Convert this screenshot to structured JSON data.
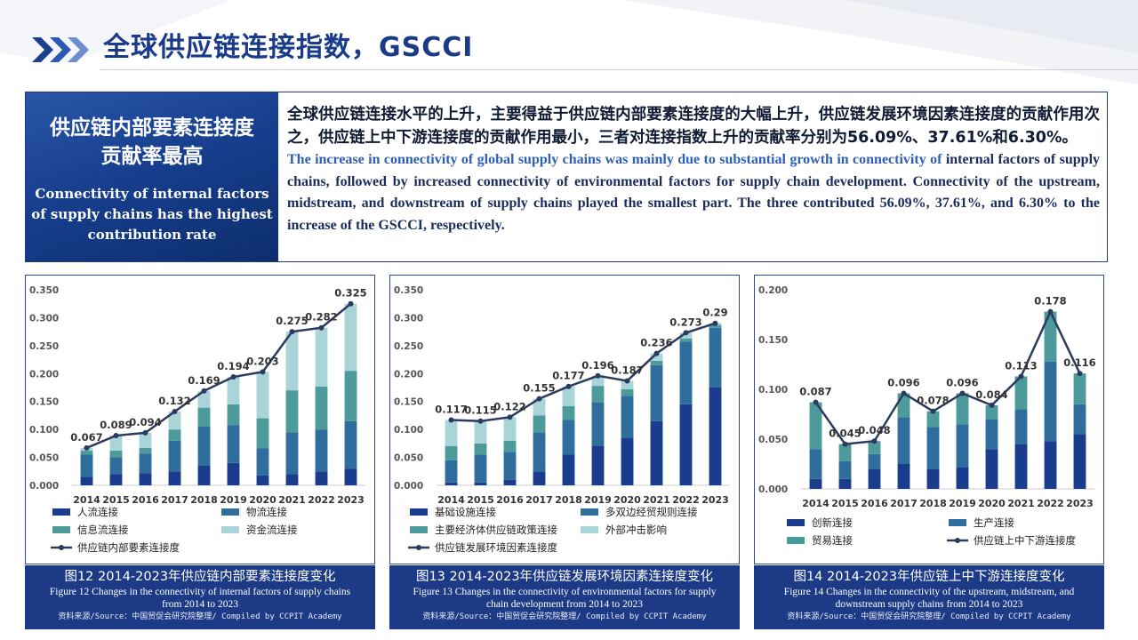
{
  "header": {
    "title": "全球供应链连接指数，GSCCI"
  },
  "summary": {
    "left_cn_line1": "供应链内部要素连接度",
    "left_cn_line2": "贡献率最高",
    "left_en": "Connectivity of internal factors of supply chains has the highest contribution rate",
    "right_cn": "全球供应链连接水平的上升，主要得益于供应链内部要素连接度的大幅上升，供应链发展环境因素连接度的贡献作用次之，供应链上中下游连接度的贡献作用最小，三者对连接指数上升的贡献率分别为56.09%、37.61%和6.30%。",
    "right_en_blue": "The increase in connectivity of global supply chains was mainly due to substantial growth in connectivity of",
    "right_en_rest": " internal factors of supply chains, followed by increased connectivity of environmental factors for supply chain development. Connectivity of the upstream, midstream, and downstream of supply chains played the smallest part. The three contributed 56.09%, 37.61%, and 6.30% to the increase of the GSCCI, respectively."
  },
  "captions": [
    {
      "cn": "图12 2014-2023年供应链内部要素连接度变化",
      "en": "Figure 12 Changes in the connectivity of internal factors of supply chains from 2014 to 2023",
      "src": "资料来源/Source：中国贸促会研究院整理/ Compiled by CCPIT Academy"
    },
    {
      "cn": "图13 2014-2023年供应链发展环境因素连接度变化",
      "en": "Figure 13 Changes in the connectivity of environmental factors for supply chain development from 2014 to 2023",
      "src": "资料来源/Source：中国贸促会研究院整理/ Compiled by CCPIT Academy"
    },
    {
      "cn": "图14 2014-2023年供应链上中下游连接度变化",
      "en": "Figure 14 Changes in the connectivity of the upstream, midstream, and downstream supply chains from 2014 to 2023",
      "src": "资料来源/Source：中国贸促会研究院整理/ Compiled by CCPIT Academy"
    }
  ],
  "chart_data": [
    {
      "type": "bar",
      "stacked": true,
      "categories": [
        "2014",
        "2015",
        "2016",
        "2017",
        "2018",
        "2019",
        "2020",
        "2021",
        "2022",
        "2023"
      ],
      "ylim": [
        0,
        0.35
      ],
      "yticks": [
        "0.000",
        "0.050",
        "0.100",
        "0.150",
        "0.200",
        "0.250",
        "0.300",
        "0.350"
      ],
      "series": [
        {
          "name": "人流连接",
          "color": "#1a3c8c",
          "values": [
            0.015,
            0.02,
            0.022,
            0.025,
            0.035,
            0.04,
            0.018,
            0.02,
            0.025,
            0.03
          ]
        },
        {
          "name": "物流连接",
          "color": "#2f6e9c",
          "values": [
            0.04,
            0.03,
            0.035,
            0.055,
            0.07,
            0.068,
            0.048,
            0.075,
            0.075,
            0.085
          ]
        },
        {
          "name": "信息流连接",
          "color": "#4d9a9a",
          "values": [
            0.007,
            0.012,
            0.01,
            0.02,
            0.034,
            0.037,
            0.054,
            0.075,
            0.077,
            0.09
          ]
        },
        {
          "name": "资金流连接",
          "color": "#a9d4d8",
          "values": [
            0.005,
            0.027,
            0.027,
            0.032,
            0.03,
            0.049,
            0.083,
            0.105,
            0.105,
            0.12
          ]
        }
      ],
      "line": {
        "name": "供应链内部要素连接度",
        "color": "#2b3a5e",
        "values": [
          0.067,
          0.089,
          0.094,
          0.132,
          0.169,
          0.194,
          0.203,
          0.275,
          0.282,
          0.325
        ]
      },
      "data_labels": [
        "0.067",
        "0.089",
        "0.094",
        "0.132",
        "0.169",
        "0.194",
        "0.203",
        "0.275",
        "0.282",
        "0.325"
      ]
    },
    {
      "type": "bar",
      "stacked": true,
      "categories": [
        "2014",
        "2015",
        "2016",
        "2017",
        "2018",
        "2019",
        "2020",
        "2021",
        "2022",
        "2023"
      ],
      "ylim": [
        0,
        0.35
      ],
      "yticks": [
        "0.000",
        "0.050",
        "0.100",
        "0.150",
        "0.200",
        "0.250",
        "0.300",
        "0.350"
      ],
      "series": [
        {
          "name": "基础设施连接",
          "color": "#1a3c8c",
          "values": [
            0.005,
            0.005,
            0.01,
            0.025,
            0.055,
            0.07,
            0.085,
            0.115,
            0.145,
            0.175
          ]
        },
        {
          "name": "多双边经贸规则连接",
          "color": "#2f6e9c",
          "values": [
            0.04,
            0.05,
            0.05,
            0.07,
            0.062,
            0.078,
            0.075,
            0.1,
            0.112,
            0.107
          ]
        },
        {
          "name": "主要经济体供应链政策连接",
          "color": "#4d9a9a",
          "values": [
            0.025,
            0.02,
            0.02,
            0.03,
            0.025,
            0.03,
            0.012,
            0.008,
            0.006,
            0.005
          ]
        },
        {
          "name": "外部冲击影响",
          "color": "#a9d4d8",
          "values": [
            0.047,
            0.04,
            0.042,
            0.03,
            0.035,
            0.018,
            0.015,
            0.013,
            0.01,
            0.003
          ]
        }
      ],
      "line": {
        "name": "供应链发展环境因素连接度",
        "color": "#2b3a5e",
        "values": [
          0.117,
          0.115,
          0.122,
          0.155,
          0.177,
          0.196,
          0.187,
          0.236,
          0.273,
          0.29
        ]
      },
      "data_labels": [
        "0.117",
        "0.115",
        "0.122",
        "0.155",
        "0.177",
        "0.196",
        "0.187",
        "0.236",
        "0.273",
        "0.29"
      ]
    },
    {
      "type": "bar",
      "stacked": true,
      "categories": [
        "2014",
        "2015",
        "2016",
        "2017",
        "2018",
        "2019",
        "2020",
        "2021",
        "2022",
        "2023"
      ],
      "ylim": [
        0,
        0.2
      ],
      "yticks": [
        "0.000",
        "0.050",
        "0.100",
        "0.150",
        "0.200"
      ],
      "series": [
        {
          "name": "创新连接",
          "color": "#1a3c8c",
          "values": [
            0.01,
            0.01,
            0.02,
            0.025,
            0.02,
            0.022,
            0.04,
            0.045,
            0.048,
            0.055
          ]
        },
        {
          "name": "生产连接",
          "color": "#2f6e9c",
          "values": [
            0.03,
            0.018,
            0.015,
            0.047,
            0.042,
            0.043,
            0.03,
            0.035,
            0.08,
            0.03
          ]
        },
        {
          "name": "贸易连接",
          "color": "#4d9a9a",
          "values": [
            0.047,
            0.017,
            0.013,
            0.024,
            0.016,
            0.031,
            0.014,
            0.033,
            0.05,
            0.031
          ]
        }
      ],
      "line": {
        "name": "供应链上中下游连接度",
        "color": "#2b3a5e",
        "values": [
          0.087,
          0.045,
          0.048,
          0.096,
          0.078,
          0.096,
          0.084,
          0.113,
          0.178,
          0.116
        ]
      },
      "data_labels": [
        "0.087",
        "0.045",
        "0.048",
        "0.096",
        "0.078",
        "0.096",
        "0.084",
        "0.113",
        "0.178",
        "0.116"
      ]
    }
  ]
}
